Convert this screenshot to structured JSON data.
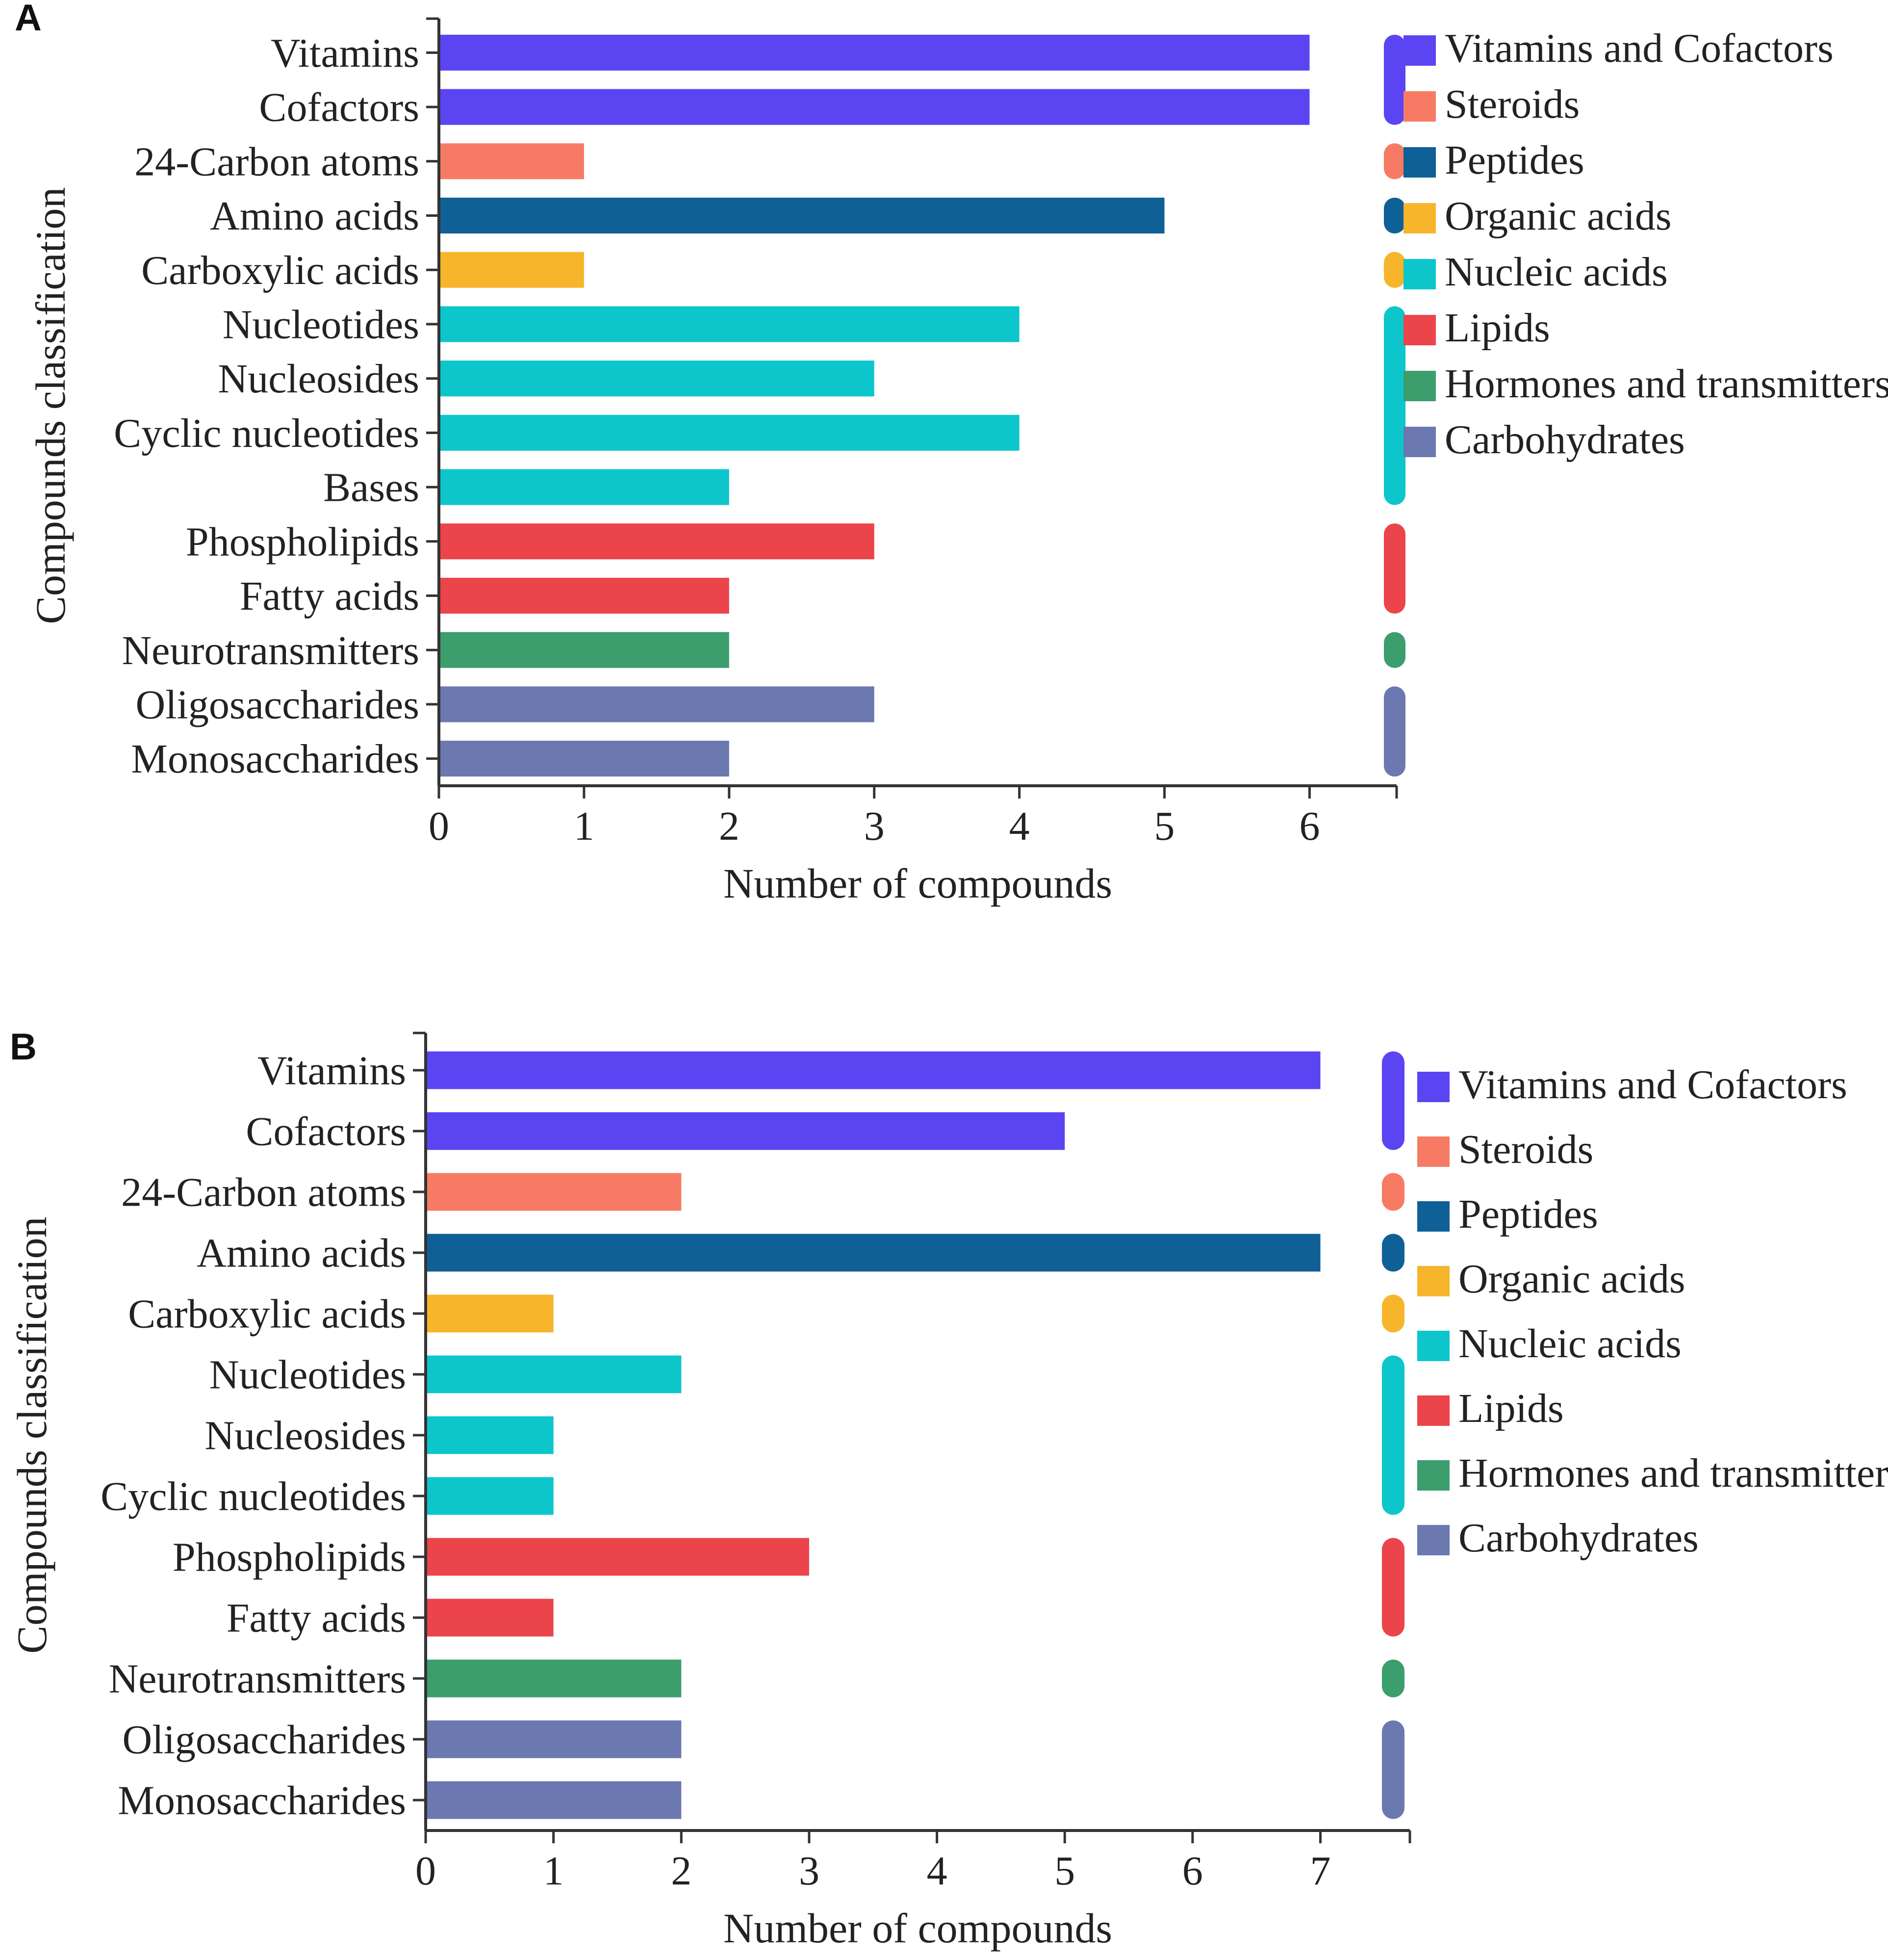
{
  "chart_data": [
    {
      "type": "bar",
      "orientation": "horizontal",
      "panel_label": "A",
      "xlabel": "Number of compounds",
      "ylabel": "Compounds classification",
      "xlim": [
        0,
        6.6
      ],
      "xticks": [
        0,
        1,
        2,
        3,
        4,
        5,
        6
      ],
      "grid": false,
      "legend_position": "right",
      "categories": [
        "Vitamins",
        "Cofactors",
        "24-Carbon atoms",
        "Amino acids",
        "Carboxylic acids",
        "Nucleotides",
        "Nucleosides",
        "Cyclic nucleotides",
        "Bases",
        "Phospholipids",
        "Fatty acids",
        "Neurotransmitters",
        "Oligosaccharides",
        "Monosaccharides"
      ],
      "values": [
        6,
        6,
        1,
        5,
        1,
        4,
        3,
        4,
        2,
        3,
        2,
        2,
        3,
        2
      ],
      "groups": [
        0,
        0,
        1,
        2,
        3,
        4,
        4,
        4,
        4,
        5,
        5,
        6,
        7,
        7
      ]
    },
    {
      "type": "bar",
      "orientation": "horizontal",
      "panel_label": "B",
      "xlabel": "Number of compounds",
      "ylabel": "Compounds classification",
      "xlim": [
        0,
        7.7
      ],
      "xticks": [
        0,
        1,
        2,
        3,
        4,
        5,
        6,
        7
      ],
      "grid": false,
      "legend_position": "right",
      "categories": [
        "Vitamins",
        "Cofactors",
        "24-Carbon atoms",
        "Amino acids",
        "Carboxylic acids",
        "Nucleotides",
        "Nucleosides",
        "Cyclic nucleotides",
        "Phospholipids",
        "Fatty acids",
        "Neurotransmitters",
        "Oligosaccharides",
        "Monosaccharides"
      ],
      "values": [
        7,
        5,
        2,
        7,
        1,
        2,
        1,
        1,
        3,
        1,
        2,
        2,
        2
      ],
      "groups": [
        0,
        0,
        1,
        2,
        3,
        4,
        4,
        4,
        5,
        5,
        6,
        7,
        7
      ]
    }
  ],
  "legend": {
    "groups": [
      {
        "name": "Vitamins and Cofactors",
        "color": "#5b44f2"
      },
      {
        "name": "Steroids",
        "color": "#f77b64"
      },
      {
        "name": "Peptides",
        "color": "#0e6096"
      },
      {
        "name": "Organic acids",
        "color": "#f7b52c"
      },
      {
        "name": "Nucleic acids",
        "color": "#0cc6cc"
      },
      {
        "name": "Lipids",
        "color": "#eb444a"
      },
      {
        "name": "Hormones and transmitters",
        "color": "#3c9e6c"
      },
      {
        "name": "Carbohydrates",
        "color": "#6c78b0"
      }
    ]
  }
}
